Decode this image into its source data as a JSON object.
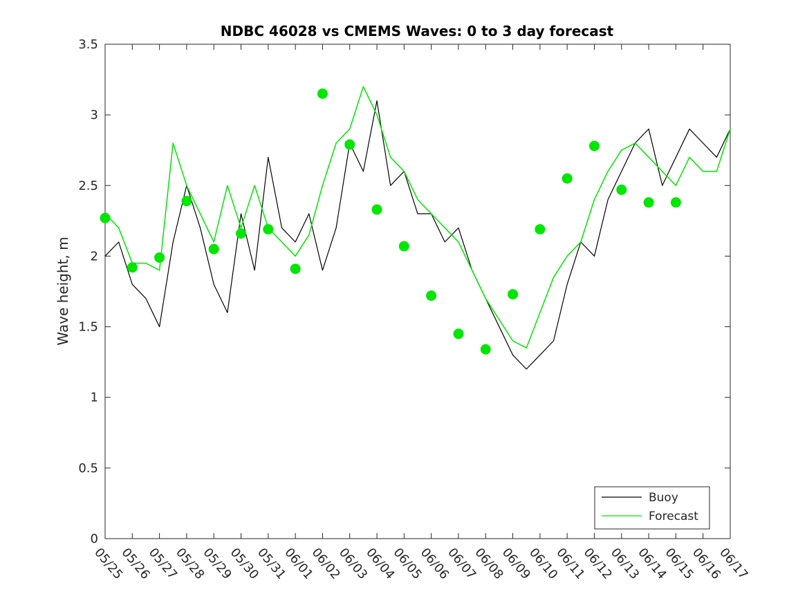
{
  "chart_data": {
    "type": "line",
    "title": "NDBC 46028 vs CMEMS Waves: 0 to 3 day forecast",
    "xlabel": "",
    "ylabel": "Wave height, m",
    "xlim": [
      "05/25",
      "06/17"
    ],
    "ylim": [
      0,
      3.5
    ],
    "grid": false,
    "legend_position": "bottom-right",
    "x_tick_labels": [
      "05/25",
      "05/26",
      "05/27",
      "05/28",
      "05/29",
      "05/30",
      "05/31",
      "06/01",
      "06/02",
      "06/03",
      "06/04",
      "06/05",
      "06/06",
      "06/07",
      "06/08",
      "06/09",
      "06/10",
      "06/11",
      "06/12",
      "06/13",
      "06/14",
      "06/15",
      "06/16",
      "06/17"
    ],
    "y_ticks": [
      0,
      0.5,
      1,
      1.5,
      2,
      2.5,
      3,
      3.5
    ],
    "y_tick_labels": [
      "0",
      "0.5",
      "1",
      "1.5",
      "2",
      "2.5",
      "3",
      "3.5"
    ],
    "colors": {
      "buoy": "#000000",
      "forecast": "#00e600",
      "axis": "#262626"
    },
    "legend": [
      {
        "label": "Buoy",
        "color": "#000000"
      },
      {
        "label": "Forecast",
        "color": "#00e600"
      }
    ],
    "series": [
      {
        "name": "Buoy",
        "x_days": [
          0,
          0.5,
          1,
          1.5,
          2,
          2.5,
          3,
          3.5,
          4,
          4.5,
          5,
          5.5,
          6,
          6.5,
          7,
          7.5,
          8,
          8.5,
          9,
          9.5,
          10,
          10.5,
          11,
          11.5,
          12,
          12.5,
          13,
          13.5,
          14,
          14.5,
          15,
          15.5,
          16,
          16.5,
          17,
          17.5,
          18,
          18.5,
          19,
          19.5,
          20,
          20.5,
          21,
          21.5,
          22,
          22.5,
          23
        ],
        "values": [
          2.0,
          2.1,
          1.8,
          1.7,
          1.5,
          2.1,
          2.5,
          2.2,
          1.8,
          1.6,
          2.3,
          1.9,
          2.7,
          2.2,
          2.1,
          2.3,
          1.9,
          2.2,
          2.8,
          2.6,
          3.1,
          2.5,
          2.6,
          2.3,
          2.3,
          2.1,
          2.2,
          1.9,
          1.7,
          1.5,
          1.3,
          1.2,
          1.3,
          1.4,
          1.8,
          2.1,
          2.0,
          2.4,
          2.6,
          2.8,
          2.9,
          2.5,
          2.7,
          2.9,
          2.8,
          2.7,
          2.9
        ]
      },
      {
        "name": "Forecast",
        "x_days": [
          0,
          0.5,
          1,
          1.5,
          2,
          2.5,
          3,
          3.5,
          4,
          4.5,
          5,
          5.5,
          6,
          6.5,
          7,
          7.5,
          8,
          8.5,
          9,
          9.5,
          10,
          10.5,
          11,
          11.5,
          12,
          12.5,
          13,
          13.5,
          14,
          14.5,
          15,
          15.5,
          16,
          16.5,
          17,
          17.5,
          18,
          18.5,
          19,
          19.5,
          20,
          20.5,
          21,
          21.5,
          22,
          22.5,
          23
        ],
        "values": [
          2.3,
          2.2,
          1.95,
          1.95,
          1.9,
          2.8,
          2.5,
          2.3,
          2.1,
          2.5,
          2.2,
          2.5,
          2.2,
          2.1,
          2.0,
          2.15,
          2.5,
          2.8,
          2.9,
          3.2,
          3.0,
          2.7,
          2.6,
          2.4,
          2.3,
          2.2,
          2.1,
          1.9,
          1.7,
          1.55,
          1.4,
          1.35,
          1.6,
          1.85,
          2.0,
          2.1,
          2.4,
          2.6,
          2.75,
          2.8,
          2.7,
          2.6,
          2.5,
          2.7,
          2.6,
          2.6,
          2.9
        ]
      },
      {
        "name": "",
        "role": "forecast-markers",
        "x_days": [
          0,
          1,
          2,
          3,
          4,
          5,
          6,
          7,
          8,
          9,
          10,
          11,
          12,
          13,
          14,
          15,
          16,
          17,
          18,
          19,
          20,
          21
        ],
        "values": [
          2.27,
          1.92,
          1.99,
          2.39,
          2.05,
          2.16,
          2.19,
          1.91,
          3.15,
          2.79,
          2.33,
          2.07,
          1.72,
          1.45,
          1.34,
          1.73,
          2.19,
          2.55,
          2.78,
          2.47,
          2.38,
          2.38
        ]
      }
    ]
  }
}
